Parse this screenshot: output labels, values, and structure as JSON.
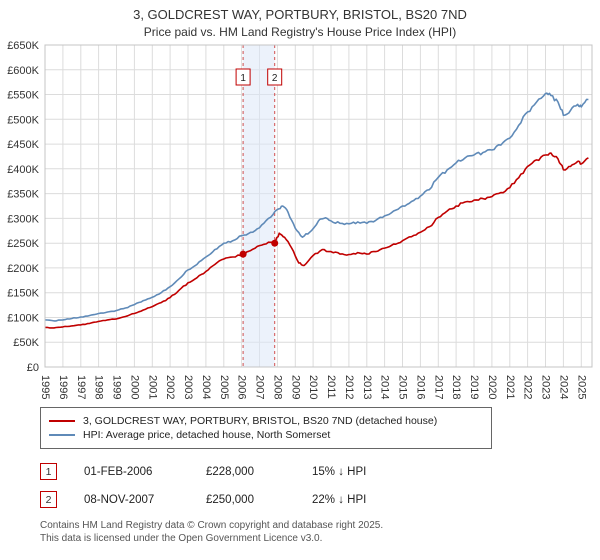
{
  "title": "3, GOLDCREST WAY, PORTBURY, BRISTOL, BS20 7ND",
  "subtitle": "Price paid vs. HM Land Registry's House Price Index (HPI)",
  "chart_data": {
    "type": "line",
    "x_range": [
      1995,
      2025.6
    ],
    "ylim": [
      0,
      650000
    ],
    "y_tick_step": 50000,
    "y_tick_labels": [
      "£0",
      "£50K",
      "£100K",
      "£150K",
      "£200K",
      "£250K",
      "£300K",
      "£350K",
      "£400K",
      "£450K",
      "£500K",
      "£550K",
      "£600K",
      "£650K"
    ],
    "x_tick_years": [
      1995,
      1996,
      1997,
      1998,
      1999,
      2000,
      2001,
      2002,
      2003,
      2004,
      2005,
      2006,
      2007,
      2008,
      2009,
      2010,
      2011,
      2012,
      2013,
      2014,
      2015,
      2016,
      2017,
      2018,
      2019,
      2020,
      2021,
      2022,
      2023,
      2024,
      2025
    ],
    "grid": true,
    "highlight_band_color": "#dce7f7",
    "sale_line_color": "#d05050",
    "series": [
      {
        "name": "3, GOLDCREST WAY, PORTBURY, BRISTOL, BS20 7ND (detached house)",
        "color": "#c00000",
        "points": [
          [
            1995,
            80000
          ],
          [
            1995.5,
            79000
          ],
          [
            1996,
            81000
          ],
          [
            1996.5,
            83000
          ],
          [
            1997,
            85000
          ],
          [
            1997.5,
            88000
          ],
          [
            1998,
            92000
          ],
          [
            1998.5,
            95000
          ],
          [
            1999,
            97000
          ],
          [
            1999.5,
            102000
          ],
          [
            2000,
            108000
          ],
          [
            2000.5,
            115000
          ],
          [
            2001,
            122000
          ],
          [
            2001.5,
            130000
          ],
          [
            2002,
            140000
          ],
          [
            2002.5,
            155000
          ],
          [
            2003,
            170000
          ],
          [
            2003.5,
            180000
          ],
          [
            2004,
            193000
          ],
          [
            2004.5,
            207000
          ],
          [
            2005,
            218000
          ],
          [
            2005.5,
            222000
          ],
          [
            2006.08,
            228000
          ],
          [
            2006.5,
            235000
          ],
          [
            2007,
            245000
          ],
          [
            2007.5,
            252000
          ],
          [
            2007.85,
            250000
          ],
          [
            2008.1,
            270000
          ],
          [
            2008.4,
            262000
          ],
          [
            2008.8,
            240000
          ],
          [
            2009.2,
            210000
          ],
          [
            2009.5,
            205000
          ],
          [
            2010,
            225000
          ],
          [
            2010.5,
            237000
          ],
          [
            2011,
            233000
          ],
          [
            2011.5,
            228000
          ],
          [
            2012,
            227000
          ],
          [
            2012.5,
            231000
          ],
          [
            2013,
            228000
          ],
          [
            2013.5,
            233000
          ],
          [
            2014,
            240000
          ],
          [
            2014.5,
            248000
          ],
          [
            2015,
            255000
          ],
          [
            2015.5,
            263000
          ],
          [
            2016,
            272000
          ],
          [
            2016.5,
            283000
          ],
          [
            2017,
            302000
          ],
          [
            2017.5,
            315000
          ],
          [
            2018,
            325000
          ],
          [
            2018.5,
            333000
          ],
          [
            2019,
            337000
          ],
          [
            2019.5,
            340000
          ],
          [
            2020,
            344000
          ],
          [
            2020.5,
            352000
          ],
          [
            2021,
            362000
          ],
          [
            2021.5,
            382000
          ],
          [
            2022,
            405000
          ],
          [
            2022.5,
            418000
          ],
          [
            2023,
            428000
          ],
          [
            2023.3,
            432000
          ],
          [
            2023.7,
            420000
          ],
          [
            2024,
            398000
          ],
          [
            2024.4,
            405000
          ],
          [
            2024.8,
            415000
          ],
          [
            2025,
            410000
          ],
          [
            2025.4,
            422000
          ]
        ]
      },
      {
        "name": "HPI: Average price, detached house, North Somerset",
        "color": "#5f8ab8",
        "points": [
          [
            1995,
            95000
          ],
          [
            1995.5,
            93000
          ],
          [
            1996,
            95000
          ],
          [
            1996.5,
            98000
          ],
          [
            1997,
            101000
          ],
          [
            1997.5,
            104000
          ],
          [
            1998,
            108000
          ],
          [
            1998.5,
            111000
          ],
          [
            1999,
            114000
          ],
          [
            1999.5,
            119000
          ],
          [
            2000,
            126000
          ],
          [
            2000.5,
            134000
          ],
          [
            2001,
            141000
          ],
          [
            2001.5,
            150000
          ],
          [
            2002,
            162000
          ],
          [
            2002.5,
            178000
          ],
          [
            2003,
            196000
          ],
          [
            2003.5,
            207000
          ],
          [
            2004,
            222000
          ],
          [
            2004.5,
            237000
          ],
          [
            2005,
            250000
          ],
          [
            2005.5,
            255000
          ],
          [
            2006,
            265000
          ],
          [
            2006.5,
            272000
          ],
          [
            2007,
            281000
          ],
          [
            2007.5,
            300000
          ],
          [
            2008,
            318000
          ],
          [
            2008.3,
            325000
          ],
          [
            2008.6,
            312000
          ],
          [
            2009,
            280000
          ],
          [
            2009.4,
            262000
          ],
          [
            2009.8,
            272000
          ],
          [
            2010.3,
            295000
          ],
          [
            2010.6,
            300000
          ],
          [
            2011,
            295000
          ],
          [
            2011.5,
            290000
          ],
          [
            2012,
            289000
          ],
          [
            2012.5,
            293000
          ],
          [
            2013,
            290000
          ],
          [
            2013.5,
            296000
          ],
          [
            2014,
            305000
          ],
          [
            2014.5,
            315000
          ],
          [
            2015,
            325000
          ],
          [
            2015.5,
            334000
          ],
          [
            2016,
            345000
          ],
          [
            2016.5,
            358000
          ],
          [
            2017,
            383000
          ],
          [
            2017.5,
            398000
          ],
          [
            2018,
            412000
          ],
          [
            2018.5,
            422000
          ],
          [
            2019,
            428000
          ],
          [
            2019.5,
            433000
          ],
          [
            2020,
            438000
          ],
          [
            2020.5,
            448000
          ],
          [
            2021,
            462000
          ],
          [
            2021.5,
            488000
          ],
          [
            2022,
            515000
          ],
          [
            2022.5,
            535000
          ],
          [
            2023,
            552000
          ],
          [
            2023.3,
            548000
          ],
          [
            2023.7,
            535000
          ],
          [
            2024,
            508000
          ],
          [
            2024.4,
            518000
          ],
          [
            2024.8,
            530000
          ],
          [
            2025,
            525000
          ],
          [
            2025.4,
            540000
          ]
        ]
      }
    ],
    "sales": [
      {
        "label": "1",
        "x": 2006.08,
        "price": 228000
      },
      {
        "label": "2",
        "x": 2007.85,
        "price": 250000
      }
    ]
  },
  "annotations": [
    {
      "num": "1",
      "date": "01-FEB-2006",
      "price": "£228,000",
      "hpi_diff": "15% ↓ HPI"
    },
    {
      "num": "2",
      "date": "08-NOV-2007",
      "price": "£250,000",
      "hpi_diff": "22% ↓ HPI"
    }
  ],
  "footer": {
    "line1": "Contains HM Land Registry data © Crown copyright and database right 2025.",
    "line2": "This data is licensed under the Open Government Licence v3.0."
  }
}
